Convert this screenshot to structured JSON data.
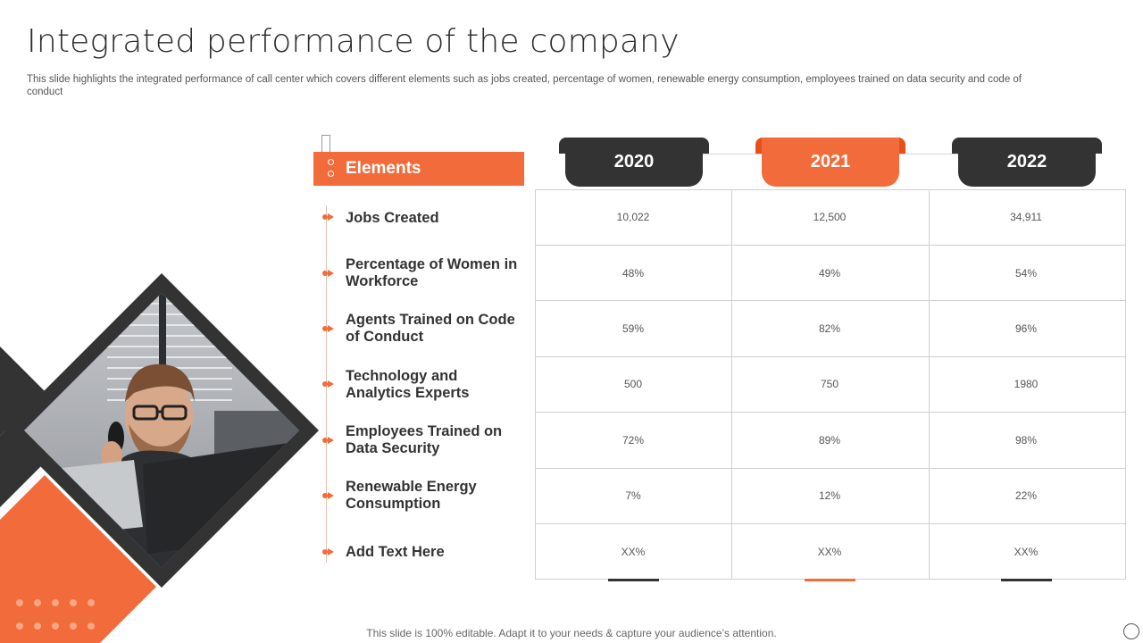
{
  "title": "Integrated performance of the company",
  "subtitle": "This slide highlights the integrated performance of call center which covers different elements such as jobs created, percentage of women, renewable energy consumption, employees trained on data security and code of conduct",
  "elements_header": "Elements",
  "years": [
    "2020",
    "2021",
    "2022"
  ],
  "colors": {
    "accent": "#f26b3a",
    "dark": "#333333"
  },
  "rows": [
    {
      "label": "Jobs Created",
      "values": [
        "10,022",
        "12,500",
        "34,911"
      ]
    },
    {
      "label": "Percentage of Women in Workforce",
      "values": [
        "48%",
        "49%",
        "54%"
      ]
    },
    {
      "label": "Agents Trained on Code of Conduct",
      "values": [
        "59%",
        "82%",
        "96%"
      ]
    },
    {
      "label": "Technology and Analytics Experts",
      "values": [
        "500",
        "750",
        "1980"
      ]
    },
    {
      "label": "Employees Trained on Data Security",
      "values": [
        "72%",
        "89%",
        "98%"
      ]
    },
    {
      "label": "Renewable Energy Consumption",
      "values": [
        "7%",
        "12%",
        "22%"
      ]
    },
    {
      "label": "Add Text Here",
      "values": [
        "XX%",
        "XX%",
        "XX%"
      ]
    }
  ],
  "footer": "This slide is 100% editable. Adapt it to your needs & capture your audience’s attention."
}
